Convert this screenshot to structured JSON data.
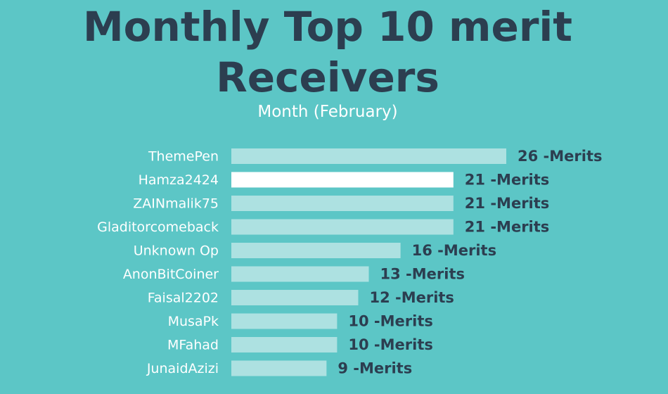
{
  "chart_data": {
    "type": "bar",
    "orientation": "horizontal",
    "title": "Monthly Top 10 merit Receivers",
    "subtitle": "Month (February)",
    "categories": [
      "ThemePen",
      "Hamza2424",
      "ZAINmalik75",
      "Gladitorcomeback",
      "Unknown Op",
      "AnonBitCoiner",
      "Faisal2202",
      "MusaPk",
      "MFahad",
      "JunaidAzizi"
    ],
    "values": [
      26,
      21,
      21,
      21,
      16,
      13,
      12,
      10,
      10,
      9
    ],
    "value_labels": [
      "26 -Merits",
      "21 -Merits",
      "21 -Merits",
      "21 -Merits",
      "16 -Merits",
      "13 -Merits",
      "12 -Merits",
      "10 -Merits",
      "10 -Merits",
      "9 -Merits"
    ],
    "colors": [
      "#ade1e1",
      "#ffffff",
      "#ade1e1",
      "#ade1e1",
      "#ade1e1",
      "#ade1e1",
      "#ade1e1",
      "#ade1e1",
      "#ade1e1",
      "#ade1e1"
    ],
    "xlim": [
      0,
      26
    ]
  }
}
